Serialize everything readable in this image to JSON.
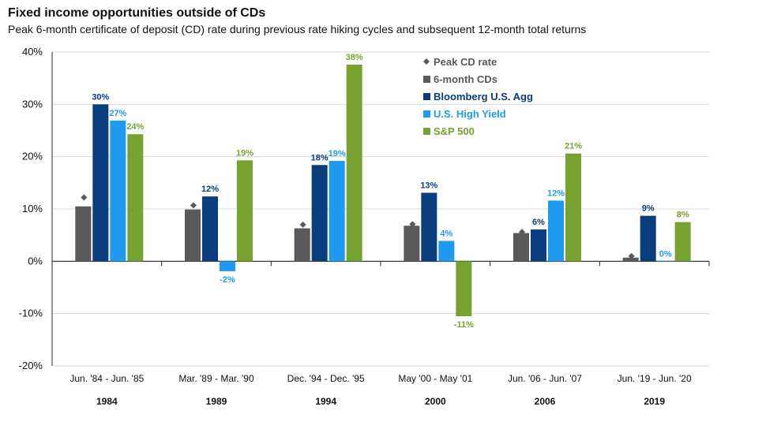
{
  "title": "Fixed income opportunities outside of CDs",
  "subtitle": "Peak 6-month certificate of deposit (CD) rate during previous rate hiking cycles and subsequent 12-month total returns",
  "chart_data": {
    "type": "bar",
    "ylim": [
      -20,
      40
    ],
    "yticks": [
      40,
      30,
      20,
      10,
      0,
      -10,
      -20
    ],
    "ytick_labels": [
      "40%",
      "30%",
      "20%",
      "10%",
      "0%",
      "-10%",
      "-20%"
    ],
    "grid": true,
    "legend_position": "top-right",
    "categories": [
      "Jun. '84 - Jun. '85",
      "Mar. '89 - Mar. '90",
      "Dec. '94 - Dec. '95",
      "May '00 - May '01",
      "Jun. '06 - Jun. '07",
      "Jun. '19 - Jun. '20"
    ],
    "years": [
      "1984",
      "1989",
      "1994",
      "2000",
      "2006",
      "2019"
    ],
    "peak_cd": {
      "name": "Peak CD rate",
      "color": "#595959",
      "values": [
        12.2,
        10.7,
        7.0,
        7.1,
        5.6,
        1.0
      ]
    },
    "series": [
      {
        "name": "6-month CDs",
        "color": "#595959",
        "values": [
          10.5,
          9.9,
          6.3,
          6.8,
          5.4,
          0.7
        ],
        "labels": [
          "",
          "",
          "",
          "",
          "",
          ""
        ]
      },
      {
        "name": "Bloomberg U.S. Agg",
        "color": "#0a3d7e",
        "values": [
          30.0,
          12.4,
          18.4,
          13.1,
          6.1,
          8.7
        ],
        "labels": [
          "30%",
          "12%",
          "18%",
          "13%",
          "6%",
          "9%"
        ]
      },
      {
        "name": "U.S. High Yield",
        "color": "#1e9bf0",
        "values": [
          26.9,
          -1.9,
          19.2,
          3.9,
          11.6,
          0.0
        ],
        "labels": [
          "27%",
          "-2%",
          "19%",
          "4%",
          "12%",
          "0%"
        ]
      },
      {
        "name": "S&P 500",
        "color": "#78a22f",
        "values": [
          24.3,
          19.3,
          37.6,
          -10.5,
          20.6,
          7.5
        ],
        "labels": [
          "24%",
          "19%",
          "38%",
          "-11%",
          "21%",
          "8%"
        ]
      }
    ]
  }
}
